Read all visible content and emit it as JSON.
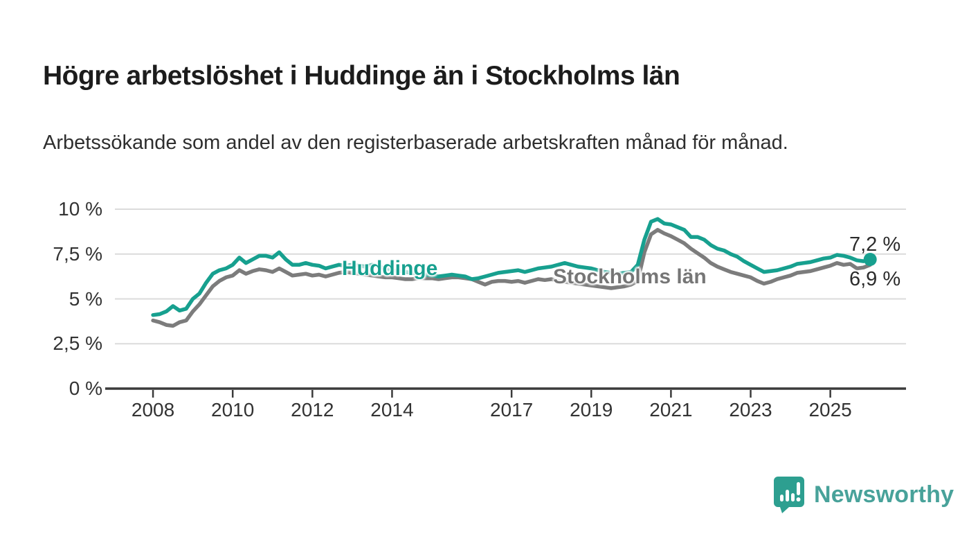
{
  "header": {
    "title": "Högre arbetslöshet i Huddinge än i Stockholms län",
    "subtitle": "Arbetssökande som andel av den registerbaserade arbetskraften månad för månad."
  },
  "branding": {
    "name": "Newsworthy",
    "icon": "newsworthy-speech-bubble-bar-chart-icon",
    "icon_color": "#2d9f90",
    "text_color": "#48a29a"
  },
  "chart_data": {
    "type": "line",
    "title": "Högre arbetslöshet i Huddinge än i Stockholms län",
    "ylabel": "Arbetssökande som andel av den registerbaserade arbetskraften",
    "x_unit": "year, monthly observations",
    "grid": "horizontal",
    "colors": {
      "grid": "#dbdbdb",
      "axis": "#3b3b3b",
      "tick_text": "#333333"
    },
    "x_axis": {
      "range": [
        2006.8,
        2026.9
      ],
      "ticks": [
        {
          "value": 2008,
          "label": "2008"
        },
        {
          "value": 2010,
          "label": "2010"
        },
        {
          "value": 2012,
          "label": "2012"
        },
        {
          "value": 2014,
          "label": "2014"
        },
        {
          "value": 2017,
          "label": "2017"
        },
        {
          "value": 2019,
          "label": "2019"
        },
        {
          "value": 2021,
          "label": "2021"
        },
        {
          "value": 2023,
          "label": "2023"
        },
        {
          "value": 2025,
          "label": "2025"
        }
      ]
    },
    "y_axis": {
      "range": [
        0,
        10
      ],
      "ticks": [
        {
          "value": 0,
          "label": "0 %"
        },
        {
          "value": 2.5,
          "label": "2,5 %"
        },
        {
          "value": 5,
          "label": "5 %"
        },
        {
          "value": 7.5,
          "label": "7,5 %"
        },
        {
          "value": 10,
          "label": "10 %"
        }
      ]
    },
    "x_start": 2008.0,
    "x_step": 0.1666667,
    "series": [
      {
        "name": "Huddinge",
        "color": "#17a08f",
        "end_label": "7,2 %",
        "end_value": 7.2,
        "end_dot": true,
        "values": [
          4.1,
          4.15,
          4.3,
          4.6,
          4.35,
          4.45,
          5.0,
          5.3,
          5.9,
          6.4,
          6.6,
          6.7,
          6.9,
          7.3,
          7.0,
          7.2,
          7.4,
          7.4,
          7.3,
          7.6,
          7.2,
          6.9,
          6.9,
          7.0,
          6.9,
          6.85,
          6.7,
          6.8,
          6.9,
          6.85,
          6.9,
          6.85,
          6.8,
          6.9,
          6.8,
          6.7,
          6.6,
          6.55,
          6.5,
          6.45,
          6.4,
          6.35,
          6.3,
          6.25,
          6.3,
          6.35,
          6.3,
          6.25,
          6.1,
          6.15,
          6.25,
          6.35,
          6.45,
          6.5,
          6.55,
          6.6,
          6.5,
          6.6,
          6.7,
          6.75,
          6.8,
          6.9,
          7.0,
          6.9,
          6.8,
          6.75,
          6.7,
          6.6,
          6.5,
          6.45,
          6.4,
          6.45,
          6.5,
          6.9,
          8.3,
          9.3,
          9.45,
          9.2,
          9.15,
          9.0,
          8.85,
          8.45,
          8.45,
          8.3,
          8.0,
          7.8,
          7.7,
          7.5,
          7.35,
          7.1,
          6.9,
          6.7,
          6.5,
          6.55,
          6.6,
          6.7,
          6.8,
          6.95,
          7.0,
          7.05,
          7.15,
          7.25,
          7.3,
          7.45,
          7.4,
          7.3,
          7.15,
          7.1,
          7.2
        ]
      },
      {
        "name": "Stockholms län",
        "color": "#7c7c7c",
        "end_label": "6,9 %",
        "end_value": 6.9,
        "end_dot": false,
        "values": [
          3.8,
          3.7,
          3.55,
          3.5,
          3.7,
          3.8,
          4.3,
          4.7,
          5.2,
          5.7,
          6.0,
          6.2,
          6.3,
          6.6,
          6.4,
          6.55,
          6.65,
          6.6,
          6.5,
          6.7,
          6.5,
          6.3,
          6.35,
          6.4,
          6.3,
          6.35,
          6.25,
          6.35,
          6.45,
          6.5,
          6.45,
          6.4,
          6.35,
          6.3,
          6.25,
          6.2,
          6.2,
          6.15,
          6.1,
          6.1,
          6.15,
          6.15,
          6.15,
          6.1,
          6.15,
          6.2,
          6.2,
          6.15,
          6.1,
          5.95,
          5.8,
          5.95,
          6.0,
          6.0,
          5.95,
          6.0,
          5.9,
          6.0,
          6.1,
          6.05,
          6.1,
          6.0,
          5.95,
          5.9,
          5.85,
          5.8,
          5.75,
          5.7,
          5.65,
          5.6,
          5.65,
          5.7,
          5.8,
          6.0,
          7.6,
          8.6,
          8.85,
          8.65,
          8.5,
          8.3,
          8.1,
          7.8,
          7.55,
          7.3,
          7.0,
          6.8,
          6.65,
          6.5,
          6.4,
          6.3,
          6.2,
          6.0,
          5.85,
          5.95,
          6.1,
          6.2,
          6.3,
          6.45,
          6.5,
          6.55,
          6.65,
          6.75,
          6.85,
          7.0,
          6.9,
          6.95,
          6.7,
          6.75,
          6.9
        ]
      }
    ]
  }
}
